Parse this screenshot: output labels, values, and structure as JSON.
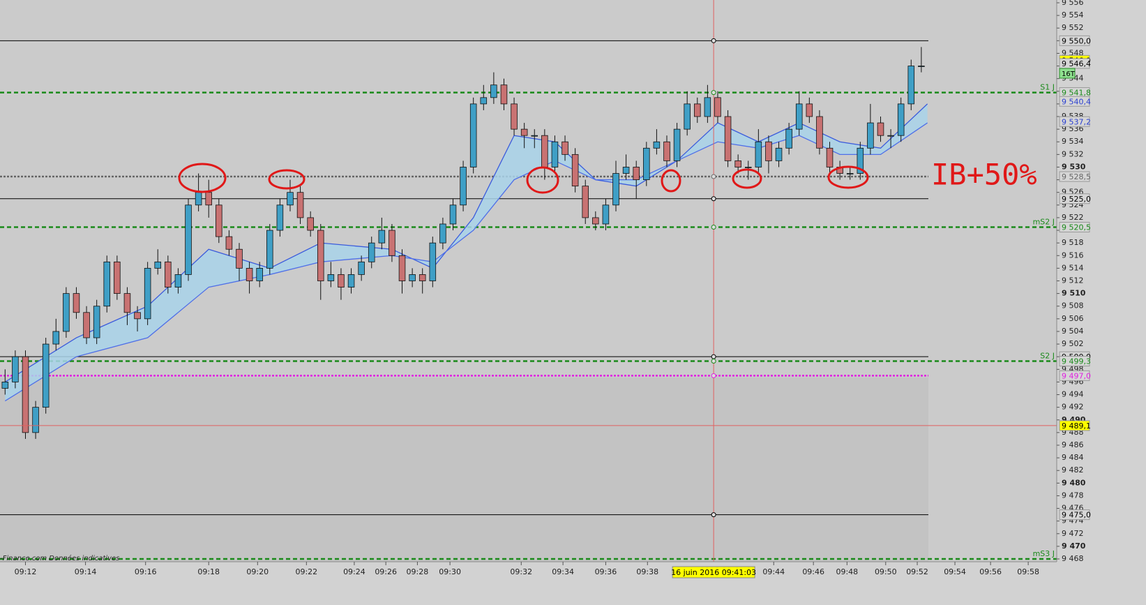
{
  "chart_data": {
    "type": "candlestick",
    "timeframe_label": "16T",
    "annotation": "IB+50%",
    "watermark": "-Finance.com Données indicatives",
    "xlim": [
      0,
      103.8
    ],
    "xticks": [
      {
        "value": 2.5,
        "label": "09:12"
      },
      {
        "value": 8.4,
        "label": "09:14"
      },
      {
        "value": 14.3,
        "label": "09:16"
      },
      {
        "value": 20.5,
        "label": "09:18"
      },
      {
        "value": 25.3,
        "label": "09:20"
      },
      {
        "value": 30.1,
        "label": "09:22"
      },
      {
        "value": 34.8,
        "label": "09:24"
      },
      {
        "value": 37.9,
        "label": "09:26"
      },
      {
        "value": 41.0,
        "label": "09:28"
      },
      {
        "value": 44.2,
        "label": "09:30"
      },
      {
        "value": 51.2,
        "label": "09:32"
      },
      {
        "value": 55.3,
        "label": "09:34"
      },
      {
        "value": 59.5,
        "label": "09:36"
      },
      {
        "value": 63.6,
        "label": "09:38"
      },
      {
        "value": 76.0,
        "label": "09:44"
      },
      {
        "value": 79.9,
        "label": "09:46"
      },
      {
        "value": 83.2,
        "label": "09:48"
      },
      {
        "value": 87.0,
        "label": "09:50"
      },
      {
        "value": 90.1,
        "label": "09:52"
      },
      {
        "value": 93.8,
        "label": "09:54"
      },
      {
        "value": 97.3,
        "label": "09:56"
      },
      {
        "value": 101.0,
        "label": "09:58"
      }
    ],
    "ylim": [
      9467.56,
      9556.44
    ],
    "yticks": [
      {
        "value": 9556,
        "label": "9 556"
      },
      {
        "value": 9554,
        "label": "9 554"
      },
      {
        "value": 9552,
        "label": "9 552"
      },
      {
        "value": 9550,
        "label": "9 550"
      },
      {
        "value": 9548,
        "label": "9 548"
      },
      {
        "value": 9546,
        "label": "9 546"
      },
      {
        "value": 9544,
        "label": "9 544"
      },
      {
        "value": 9542,
        "label": "9 542"
      },
      {
        "value": 9540,
        "label": "9 540"
      },
      {
        "value": 9538,
        "label": "9 538"
      },
      {
        "value": 9536,
        "label": "9 536"
      },
      {
        "value": 9534,
        "label": "9 534"
      },
      {
        "value": 9532,
        "label": "9 532"
      },
      {
        "value": 9530,
        "label": "9 530"
      },
      {
        "value": 9528,
        "label": "9 528"
      },
      {
        "value": 9526,
        "label": "9 526"
      },
      {
        "value": 9524,
        "label": "9 524"
      },
      {
        "value": 9522,
        "label": "9 522"
      },
      {
        "value": 9520,
        "label": "9 520"
      },
      {
        "value": 9518,
        "label": "9 518"
      },
      {
        "value": 9516,
        "label": "9 516"
      },
      {
        "value": 9514,
        "label": "9 514"
      },
      {
        "value": 9512,
        "label": "9 512"
      },
      {
        "value": 9510,
        "label": "9 510"
      },
      {
        "value": 9508,
        "label": "9 508"
      },
      {
        "value": 9506,
        "label": "9 506"
      },
      {
        "value": 9504,
        "label": "9 504"
      },
      {
        "value": 9502,
        "label": "9 502"
      },
      {
        "value": 9500,
        "label": "9 500"
      },
      {
        "value": 9498,
        "label": "9 498"
      },
      {
        "value": 9496,
        "label": "9 496"
      },
      {
        "value": 9494,
        "label": "9 494"
      },
      {
        "value": 9492,
        "label": "9 492"
      },
      {
        "value": 9490,
        "label": "9 490"
      },
      {
        "value": 9488,
        "label": "9 488"
      },
      {
        "value": 9486,
        "label": "9 486"
      },
      {
        "value": 9484,
        "label": "9 484"
      },
      {
        "value": 9482,
        "label": "9 482"
      },
      {
        "value": 9480,
        "label": "9 480"
      },
      {
        "value": 9478,
        "label": "9 478"
      },
      {
        "value": 9476,
        "label": "9 476"
      },
      {
        "value": 9474,
        "label": "9 474"
      },
      {
        "value": 9472,
        "label": "9 472"
      },
      {
        "value": 9470,
        "label": "9 470"
      },
      {
        "value": 9468,
        "label": "9 468"
      }
    ],
    "candles": {
      "up_color": "#3f9fc6",
      "down_color": "#c87272",
      "open": [
        9495,
        9496,
        9500,
        9488,
        9492,
        9502,
        9504,
        9510,
        9507,
        9503,
        9508,
        9515,
        9510,
        9507,
        9506,
        9514,
        9515,
        9511,
        9513,
        9524,
        9526,
        9524,
        9519,
        9517,
        9514,
        9512,
        9514,
        9520,
        9524,
        9526,
        9522,
        9520,
        9512,
        9513,
        9511,
        9513,
        9515,
        9518,
        9520,
        9516,
        9512,
        9513,
        9512,
        9518,
        9521,
        9524,
        9530,
        9540,
        9541,
        9543,
        9540,
        9536,
        9535,
        9535,
        9530,
        9534,
        9532,
        9527,
        9522,
        9521,
        9524,
        9529,
        9530,
        9528,
        9533,
        9534,
        9531,
        9536,
        9540,
        9538,
        9541,
        9538,
        9531,
        9530,
        9530,
        9534,
        9531,
        9533,
        9536,
        9540,
        9538,
        9533,
        9530,
        9529,
        9529,
        9533,
        9537,
        9535,
        9535,
        9540,
        9546
      ],
      "high": [
        9498,
        9501,
        9501,
        9493,
        9503,
        9506,
        9511,
        9511,
        9508,
        9509,
        9516,
        9516,
        9511,
        9508,
        9515,
        9517,
        9516,
        9514,
        9525,
        9529,
        9528,
        9525,
        9520,
        9518,
        9515,
        9515,
        9521,
        9525,
        9528,
        9527,
        9523,
        9521,
        9515,
        9514,
        9514,
        9516,
        9519,
        9522,
        9521,
        9517,
        9514,
        9514,
        9519,
        9522,
        9525,
        9531,
        9541,
        9543,
        9545,
        9544,
        9541,
        9537,
        9536,
        9536,
        9535,
        9535,
        9533,
        9528,
        9523,
        9525,
        9531,
        9532,
        9531,
        9534,
        9536,
        9535,
        9537,
        9542,
        9541,
        9543,
        9542,
        9539,
        9532,
        9531,
        9536,
        9535,
        9534,
        9537,
        9542,
        9541,
        9539,
        9534,
        9531,
        9530,
        9534,
        9540,
        9538,
        9536,
        9541,
        9547,
        9549
      ],
      "low": [
        9494,
        9495,
        9487,
        9487,
        9491,
        9501,
        9503,
        9506,
        9502,
        9502,
        9507,
        9509,
        9505,
        9504,
        9505,
        9513,
        9510,
        9510,
        9512,
        9523,
        9522,
        9518,
        9516,
        9512,
        9510,
        9511,
        9513,
        9519,
        9523,
        9521,
        9519,
        9509,
        9511,
        9509,
        9510,
        9512,
        9514,
        9517,
        9515,
        9510,
        9511,
        9510,
        9511,
        9517,
        9520,
        9523,
        9529,
        9539,
        9540,
        9539,
        9535,
        9533,
        9533,
        9528,
        9529,
        9531,
        9526,
        9521,
        9520,
        9520,
        9523,
        9528,
        9525,
        9527,
        9532,
        9530,
        9530,
        9535,
        9537,
        9537,
        9537,
        9530,
        9529,
        9528,
        9529,
        9529,
        9530,
        9532,
        9535,
        9537,
        9532,
        9529,
        9528,
        9528,
        9528,
        9532,
        9534,
        9533,
        9534,
        9539,
        9545
      ],
      "close": [
        9496,
        9500,
        9488,
        9492,
        9502,
        9504,
        9510,
        9507,
        9503,
        9508,
        9515,
        9510,
        9507,
        9506,
        9514,
        9515,
        9511,
        9513,
        9524,
        9526,
        9524,
        9519,
        9517,
        9514,
        9512,
        9514,
        9520,
        9524,
        9526,
        9522,
        9520,
        9512,
        9513,
        9511,
        9513,
        9515,
        9518,
        9520,
        9516,
        9512,
        9513,
        9512,
        9518,
        9521,
        9524,
        9530,
        9540,
        9541,
        9543,
        9540,
        9536,
        9535,
        9535,
        9530,
        9534,
        9532,
        9527,
        9522,
        9521,
        9524,
        9529,
        9530,
        9528,
        9533,
        9534,
        9531,
        9536,
        9540,
        9538,
        9541,
        9538,
        9531,
        9530,
        9530,
        9534,
        9531,
        9533,
        9536,
        9540,
        9538,
        9533,
        9530,
        9529,
        9529,
        9533,
        9537,
        9535,
        9535,
        9540,
        9546,
        9546
      ]
    },
    "ma_x": [
      0.5,
      7.5,
      14.5,
      20.5,
      26.5,
      31.5,
      38.5,
      42.5,
      46.5,
      50.5,
      54.5,
      58.5,
      62.5,
      66.5,
      70.5,
      74.5,
      78.5,
      82.5,
      86.5,
      91.1
    ],
    "ma_fast": {
      "color": "#3b5bdc",
      "values": [
        9496,
        9503,
        9508,
        9517,
        9514,
        9518,
        9517,
        9514,
        9522,
        9535,
        9534,
        9528,
        9527,
        9531,
        9537,
        9534,
        9537,
        9534,
        9533,
        9540
      ]
    },
    "ma_slow": {
      "color": "#4f6fe8",
      "values": [
        9493,
        9500,
        9503,
        9511,
        9513,
        9515,
        9516,
        9515,
        9520,
        9528,
        9531,
        9528,
        9528,
        9531,
        9534,
        9533,
        9535,
        9532,
        9532,
        9537
      ]
    },
    "ma_fill": "#a9d3ea",
    "levels": [
      {
        "value": 9550.0,
        "label": "9 550,0",
        "color": "#000000",
        "dash": "solid"
      },
      {
        "value": 9541.8,
        "label": "9 541,8",
        "name": "S1 J",
        "color": "#1a8a1a",
        "dash": "dashed"
      },
      {
        "value": 9528.5,
        "label": "9 528,5",
        "color": "#666666",
        "dash": "dotted"
      },
      {
        "value": 9525.0,
        "label": "9 525,0",
        "color": "#000000",
        "dash": "solid"
      },
      {
        "value": 9520.5,
        "label": "9 520,5",
        "name": "mS2 J",
        "color": "#1a8a1a",
        "dash": "dashed"
      },
      {
        "value": 9500.0,
        "label": "9 500,0",
        "color": "#000000",
        "dash": "solid"
      },
      {
        "value": 9499.3,
        "label": "9 499,3",
        "name": "S2 J",
        "color": "#1a8a1a",
        "dash": "dashed"
      },
      {
        "value": 9497.0,
        "label": "9 497,0",
        "color": "#e020e0",
        "dash": "dotted"
      },
      {
        "value": 9475.0,
        "label": "9 475,0",
        "color": "#000000",
        "dash": "solid"
      },
      {
        "value": 9468.0,
        "name": "mS3 J",
        "color": "#1a8a1a",
        "dash": "dashed"
      }
    ],
    "price_labels": [
      {
        "value": 9546.9,
        "label": "9 546,9",
        "color": "#000000",
        "bg": "#ffff00"
      },
      {
        "value": 9546.4,
        "label": "9 546,4",
        "color": "#000000",
        "bg": "#d6d6d6"
      },
      {
        "value": 9540.4,
        "label": "9 540,4",
        "color": "#2a3fd0",
        "bg": "#d6d6d6"
      },
      {
        "value": 9537.2,
        "label": "9 537,2",
        "color": "#2a3fd0",
        "bg": "#d6d6d6"
      }
    ],
    "cursor": {
      "x": 70.1,
      "y": 9489.1,
      "x_label": "16 juin 2016 09:41:03",
      "y_label": "9 489,1",
      "color": "#e06060"
    }
  }
}
